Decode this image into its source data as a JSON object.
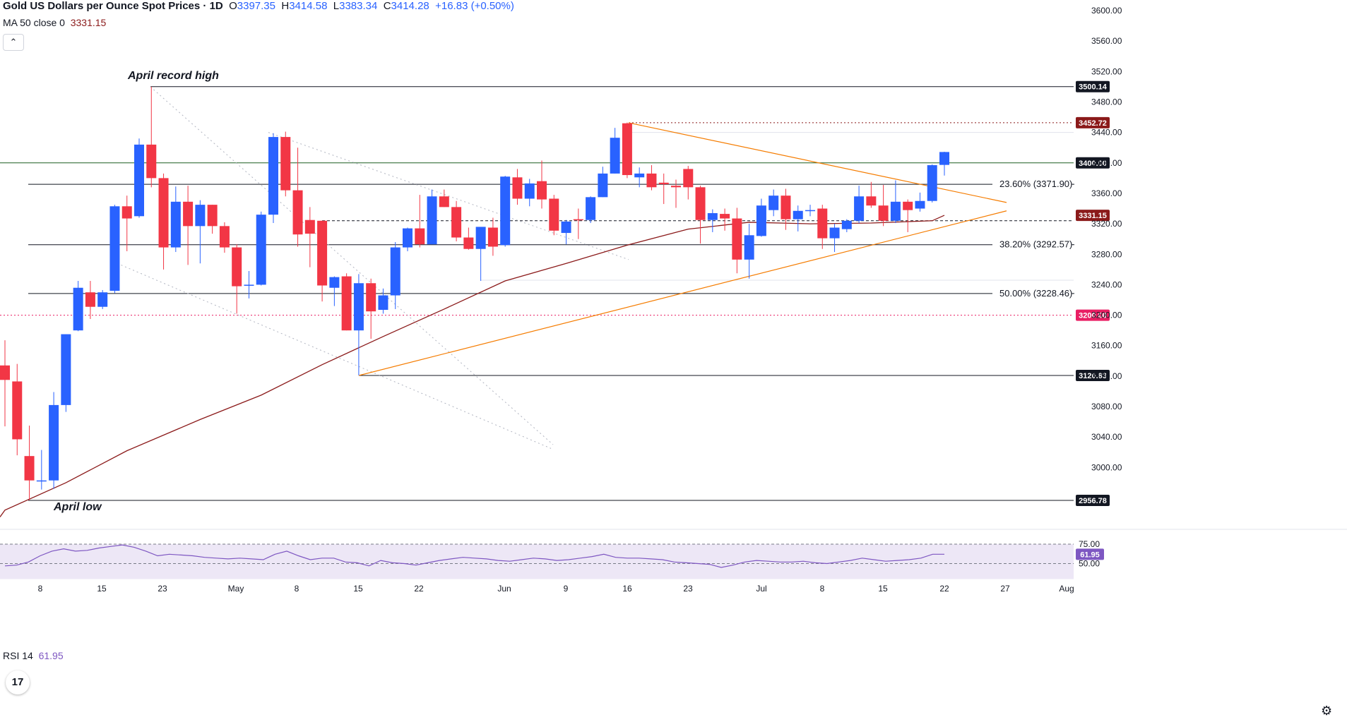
{
  "header": {
    "title": "Gold US Dollars per Ounce Spot Prices · 1D",
    "o_label": "O",
    "o_value": "3397.35",
    "h_label": "H",
    "h_value": "3414.58",
    "l_label": "L",
    "l_value": "3383.34",
    "c_label": "C",
    "c_value": "3414.28",
    "change": "+16.83 (+0.50%)"
  },
  "ma_indicator": {
    "label": "MA 50 close 0",
    "value": "3331.15"
  },
  "collapse_glyph": "⌃",
  "rsi_indicator": {
    "label": "RSI 14",
    "value": "61.95"
  },
  "logo_text": "17",
  "settings_glyph": "⚙",
  "colors": {
    "up": "#2962ff",
    "down": "#f23645",
    "ma": "#8b1a1a",
    "triangle": "#f57c00",
    "green_level": "#1b5e20",
    "red_level": "#e91e63",
    "dark_level": "#8b1a1a",
    "rsi": "#7e57c2"
  },
  "chart_data": {
    "type": "candlestick",
    "title": "Gold US Dollars per Ounce Spot Prices · 1D",
    "y_axis": {
      "range": [
        2930,
        3620
      ],
      "ticks": [
        3000,
        3040,
        3080,
        3120,
        3160,
        3200,
        3240,
        3280,
        3320,
        3360,
        3400,
        3440,
        3480,
        3520,
        3560,
        3600
      ],
      "tick_labels": [
        "3000.00",
        "3040.00",
        "3080.00",
        "3120.00",
        "3160.00",
        "3200.00",
        "3240.00",
        "3280.00",
        "3320.00",
        "3360.00",
        "3400.00",
        "3440.00",
        "3480.00",
        "3520.00",
        "3560.00",
        "3600.00"
      ]
    },
    "x_axis": {
      "tick_labels": [
        "8",
        "15",
        "23",
        "May",
        "8",
        "15",
        "22",
        "Jun",
        "9",
        "16",
        "23",
        "Jul",
        "8",
        "15",
        "22",
        "27",
        "Aug"
      ]
    },
    "candles": [
      {
        "d": "Apr 3",
        "o": 3134,
        "h": 3167,
        "l": 3054,
        "c": 3115
      },
      {
        "d": "Apr 4",
        "o": 3113,
        "h": 3136,
        "l": 3016,
        "c": 3037
      },
      {
        "d": "Apr 7",
        "o": 3015,
        "h": 3055,
        "l": 2957,
        "c": 2983
      },
      {
        "d": "Apr 8",
        "o": 2983,
        "h": 3023,
        "l": 2971,
        "c": 2983
      },
      {
        "d": "Apr 9",
        "o": 2983,
        "h": 3099,
        "l": 2972,
        "c": 3082
      },
      {
        "d": "Apr 10",
        "o": 3082,
        "h": 3175,
        "l": 3073,
        "c": 3175
      },
      {
        "d": "Apr 11",
        "o": 3180,
        "h": 3245,
        "l": 3179,
        "c": 3236
      },
      {
        "d": "Apr 14",
        "o": 3230,
        "h": 3245,
        "l": 3195,
        "c": 3211
      },
      {
        "d": "Apr 15",
        "o": 3211,
        "h": 3233,
        "l": 3208,
        "c": 3230
      },
      {
        "d": "Apr 16",
        "o": 3232,
        "h": 3345,
        "l": 3229,
        "c": 3343
      },
      {
        "d": "Apr 17",
        "o": 3343,
        "h": 3357,
        "l": 3284,
        "c": 3327
      },
      {
        "d": "Apr 18",
        "o": 3330,
        "h": 3432,
        "l": 3328,
        "c": 3424
      },
      {
        "d": "Apr 21",
        "o": 3424,
        "h": 3500,
        "l": 3368,
        "c": 3380
      },
      {
        "d": "Apr 22",
        "o": 3380,
        "h": 3386,
        "l": 3260,
        "c": 3289
      },
      {
        "d": "Apr 23",
        "o": 3289,
        "h": 3369,
        "l": 3283,
        "c": 3349
      },
      {
        "d": "Apr 24",
        "o": 3349,
        "h": 3370,
        "l": 3266,
        "c": 3317
      },
      {
        "d": "Apr 25",
        "o": 3317,
        "h": 3351,
        "l": 3268,
        "c": 3345
      },
      {
        "d": "Apr 28",
        "o": 3345,
        "h": 3345,
        "l": 3307,
        "c": 3317
      },
      {
        "d": "Apr 29",
        "o": 3317,
        "h": 3322,
        "l": 3282,
        "c": 3289
      },
      {
        "d": "Apr 30",
        "o": 3289,
        "h": 3293,
        "l": 3202,
        "c": 3238
      },
      {
        "d": "May 1",
        "o": 3240,
        "h": 3258,
        "l": 3222,
        "c": 3240
      },
      {
        "d": "May 2",
        "o": 3240,
        "h": 3336,
        "l": 3239,
        "c": 3332
      },
      {
        "d": "May 5",
        "o": 3332,
        "h": 3439,
        "l": 3321,
        "c": 3434
      },
      {
        "d": "May 6",
        "o": 3434,
        "h": 3441,
        "l": 3356,
        "c": 3364
      },
      {
        "d": "May 7",
        "o": 3364,
        "h": 3420,
        "l": 3290,
        "c": 3306
      },
      {
        "d": "May 8",
        "o": 3325,
        "h": 3342,
        "l": 3263,
        "c": 3307
      },
      {
        "d": "May 9",
        "o": 3324,
        "h": 3324,
        "l": 3218,
        "c": 3239
      },
      {
        "d": "May 12",
        "o": 3236,
        "h": 3251,
        "l": 3212,
        "c": 3250
      },
      {
        "d": "May 13",
        "o": 3251,
        "h": 3255,
        "l": 3180,
        "c": 3180
      },
      {
        "d": "May 14",
        "o": 3180,
        "h": 3254,
        "l": 3121,
        "c": 3242
      },
      {
        "d": "May 15",
        "o": 3242,
        "h": 3248,
        "l": 3169,
        "c": 3205
      },
      {
        "d": "May 16",
        "o": 3207,
        "h": 3235,
        "l": 3202,
        "c": 3226
      },
      {
        "d": "May 19",
        "o": 3226,
        "h": 3296,
        "l": 3208,
        "c": 3289
      },
      {
        "d": "May 20",
        "o": 3289,
        "h": 3315,
        "l": 3284,
        "c": 3314
      },
      {
        "d": "May 21",
        "o": 3314,
        "h": 3358,
        "l": 3289,
        "c": 3293
      },
      {
        "d": "May 22",
        "o": 3293,
        "h": 3365,
        "l": 3293,
        "c": 3356
      },
      {
        "d": "May 23",
        "o": 3356,
        "h": 3365,
        "l": 3342,
        "c": 3342
      },
      {
        "d": "May 26",
        "o": 3342,
        "h": 3350,
        "l": 3297,
        "c": 3302
      },
      {
        "d": "May 27",
        "o": 3302,
        "h": 3315,
        "l": 3286,
        "c": 3287
      },
      {
        "d": "May 28",
        "o": 3287,
        "h": 3315,
        "l": 3245,
        "c": 3316
      },
      {
        "d": "May 29",
        "o": 3315,
        "h": 3328,
        "l": 3278,
        "c": 3290
      },
      {
        "d": "May 30",
        "o": 3292,
        "h": 3383,
        "l": 3290,
        "c": 3382
      },
      {
        "d": "Jun 2",
        "o": 3381,
        "h": 3392,
        "l": 3345,
        "c": 3353
      },
      {
        "d": "Jun 3",
        "o": 3353,
        "h": 3379,
        "l": 3343,
        "c": 3373
      },
      {
        "d": "Jun 4",
        "o": 3376,
        "h": 3403,
        "l": 3340,
        "c": 3352
      },
      {
        "d": "Jun 5",
        "o": 3353,
        "h": 3358,
        "l": 3305,
        "c": 3311
      },
      {
        "d": "Jun 6",
        "o": 3308,
        "h": 3325,
        "l": 3293,
        "c": 3323
      },
      {
        "d": "Jun 9",
        "o": 3326,
        "h": 3340,
        "l": 3300,
        "c": 3325
      },
      {
        "d": "Jun 10",
        "o": 3325,
        "h": 3356,
        "l": 3321,
        "c": 3355
      },
      {
        "d": "Jun 11",
        "o": 3355,
        "h": 3395,
        "l": 3355,
        "c": 3386
      },
      {
        "d": "Jun 12",
        "o": 3386,
        "h": 3446,
        "l": 3386,
        "c": 3433
      },
      {
        "d": "Jun 13",
        "o": 3452,
        "h": 3453,
        "l": 3380,
        "c": 3384
      },
      {
        "d": "Jun 16",
        "o": 3381,
        "h": 3394,
        "l": 3368,
        "c": 3386
      },
      {
        "d": "Jun 17",
        "o": 3386,
        "h": 3397,
        "l": 3364,
        "c": 3368
      },
      {
        "d": "Jun 18",
        "o": 3374,
        "h": 3386,
        "l": 3346,
        "c": 3372
      },
      {
        "d": "Jun 19",
        "o": 3370,
        "h": 3378,
        "l": 3341,
        "c": 3368
      },
      {
        "d": "Jun 20",
        "o": 3392,
        "h": 3396,
        "l": 3352,
        "c": 3368
      },
      {
        "d": "Jun 23",
        "o": 3368,
        "h": 3370,
        "l": 3294,
        "c": 3325
      },
      {
        "d": "Jun 24",
        "o": 3325,
        "h": 3339,
        "l": 3309,
        "c": 3334
      },
      {
        "d": "Jun 25",
        "o": 3333,
        "h": 3340,
        "l": 3311,
        "c": 3327
      },
      {
        "d": "Jun 26",
        "o": 3327,
        "h": 3341,
        "l": 3255,
        "c": 3273
      },
      {
        "d": "Jun 27",
        "o": 3273,
        "h": 3320,
        "l": 3248,
        "c": 3305
      },
      {
        "d": "Jun 30",
        "o": 3304,
        "h": 3353,
        "l": 3303,
        "c": 3344
      },
      {
        "d": "Jul 1",
        "o": 3338,
        "h": 3365,
        "l": 3330,
        "c": 3357
      },
      {
        "d": "Jul 2",
        "o": 3357,
        "h": 3366,
        "l": 3312,
        "c": 3326
      },
      {
        "d": "Jul 3",
        "o": 3326,
        "h": 3344,
        "l": 3310,
        "c": 3337
      },
      {
        "d": "Jul 4",
        "o": 3337,
        "h": 3345,
        "l": 3330,
        "c": 3338
      },
      {
        "d": "Jul 7",
        "o": 3340,
        "h": 3345,
        "l": 3287,
        "c": 3301
      },
      {
        "d": "Jul 8",
        "o": 3301,
        "h": 3320,
        "l": 3283,
        "c": 3315
      },
      {
        "d": "Jul 9",
        "o": 3313,
        "h": 3326,
        "l": 3309,
        "c": 3324
      },
      {
        "d": "Jul 10",
        "o": 3324,
        "h": 3370,
        "l": 3321,
        "c": 3356
      },
      {
        "d": "Jul 11",
        "o": 3356,
        "h": 3375,
        "l": 3341,
        "c": 3344
      },
      {
        "d": "Jul 14",
        "o": 3344,
        "h": 3371,
        "l": 3317,
        "c": 3324
      },
      {
        "d": "Jul 15",
        "o": 3324,
        "h": 3377,
        "l": 3321,
        "c": 3349
      },
      {
        "d": "Jul 16",
        "o": 3349,
        "h": 3352,
        "l": 3309,
        "c": 3338
      },
      {
        "d": "Jul 17",
        "o": 3340,
        "h": 3361,
        "l": 3336,
        "c": 3350
      },
      {
        "d": "Jul 18",
        "o": 3350,
        "h": 3398,
        "l": 3348,
        "c": 3397
      },
      {
        "d": "Jul 21",
        "o": 3397.35,
        "h": 3414.58,
        "l": 3383.34,
        "c": 3414.28
      }
    ],
    "ma50": [
      {
        "d": "Apr 3",
        "v": 2944
      },
      {
        "d": "Apr 10",
        "v": 2980
      },
      {
        "d": "Apr 17",
        "v": 3022
      },
      {
        "d": "Apr 25",
        "v": 3063
      },
      {
        "d": "May 2",
        "v": 3095
      },
      {
        "d": "May 9",
        "v": 3135
      },
      {
        "d": "May 16",
        "v": 3172
      },
      {
        "d": "May 23",
        "v": 3208
      },
      {
        "d": "May 30",
        "v": 3245
      },
      {
        "d": "Jun 6",
        "v": 3268
      },
      {
        "d": "Jun 13",
        "v": 3292
      },
      {
        "d": "Jun 20",
        "v": 3313
      },
      {
        "d": "Jun 27",
        "v": 3322
      },
      {
        "d": "Jul 4",
        "v": 3320
      },
      {
        "d": "Jul 11",
        "v": 3321
      },
      {
        "d": "Jul 18",
        "v": 3324
      },
      {
        "d": "Jul 21",
        "v": 3331.15
      }
    ],
    "levels": [
      {
        "name": "april-record-high",
        "value": 3500.14,
        "label": "3500.14",
        "style": "solid-dark"
      },
      {
        "name": "high-3452",
        "value": 3452.72,
        "label": "3452.72",
        "style": "dotted-dark"
      },
      {
        "name": "level-3400",
        "value": 3400.0,
        "label": "3400.00",
        "style": "solid-green"
      },
      {
        "name": "fib-23",
        "value": 3371.9,
        "label": "23.60% (3371.90)",
        "style": "fib"
      },
      {
        "name": "fib-38",
        "value": 3292.57,
        "label": "38.20% (3292.57)",
        "style": "fib"
      },
      {
        "name": "fib-50",
        "value": 3228.46,
        "label": "50.00% (3228.46)",
        "style": "fib"
      },
      {
        "name": "level-3200",
        "value": 3200.0,
        "label": "3200.00",
        "style": "dotted-red"
      },
      {
        "name": "level-3120",
        "value": 3120.83,
        "label": "3120.83",
        "style": "solid-dark"
      },
      {
        "name": "april-low",
        "value": 2956.78,
        "label": "2956.78",
        "style": "solid-dark"
      }
    ],
    "ma_price_tag": "3331.15",
    "annotations": [
      {
        "text": "April record high"
      },
      {
        "text": "April low"
      }
    ],
    "rsi": {
      "levels": [
        75.0,
        50.0
      ],
      "level_labels": [
        "75.00",
        "50.00"
      ],
      "current": "61.95",
      "range": [
        35,
        85
      ],
      "values": [
        47,
        48,
        52,
        60,
        66,
        69,
        66,
        67,
        70,
        72,
        74,
        71,
        66,
        60,
        62,
        61,
        60,
        58,
        57,
        56,
        57,
        56,
        55,
        62,
        66,
        60,
        55,
        57,
        57,
        52,
        51,
        47,
        54,
        51,
        50,
        48,
        51,
        54,
        56,
        58,
        57,
        56,
        54,
        53,
        55,
        57,
        56,
        54,
        55,
        57,
        59,
        62,
        58,
        57,
        57,
        56,
        55,
        52,
        51,
        50,
        49,
        45,
        48,
        52,
        54,
        53,
        52,
        52,
        53,
        51,
        50,
        52,
        54,
        57,
        55,
        53,
        54,
        55,
        57,
        62,
        62
      ]
    }
  }
}
